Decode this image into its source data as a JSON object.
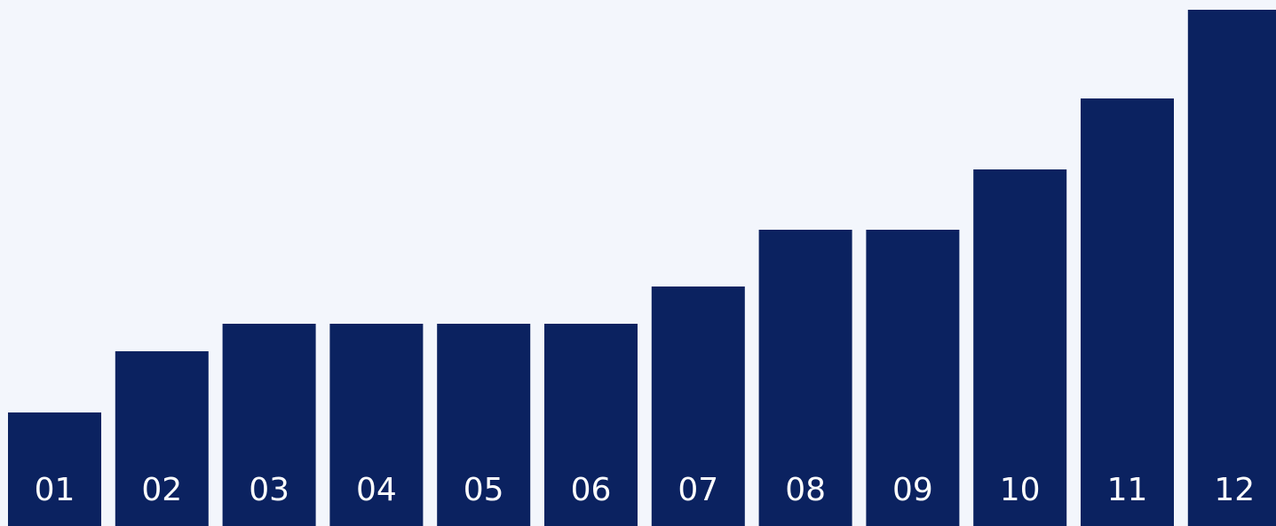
{
  "chart_data": {
    "type": "bar",
    "categories": [
      "01",
      "02",
      "03",
      "04",
      "05",
      "06",
      "07",
      "08",
      "09",
      "10",
      "11",
      "12"
    ],
    "values": [
      128,
      197,
      228,
      228,
      228,
      228,
      270,
      334,
      334,
      402,
      482,
      582
    ],
    "title": "",
    "xlabel": "",
    "ylabel": "",
    "ylim": [
      0,
      582
    ],
    "grid": false,
    "legend": "none",
    "bar_color": "#0b2260",
    "label_color": "#ffffff",
    "background_color": "#f3f6fc"
  }
}
